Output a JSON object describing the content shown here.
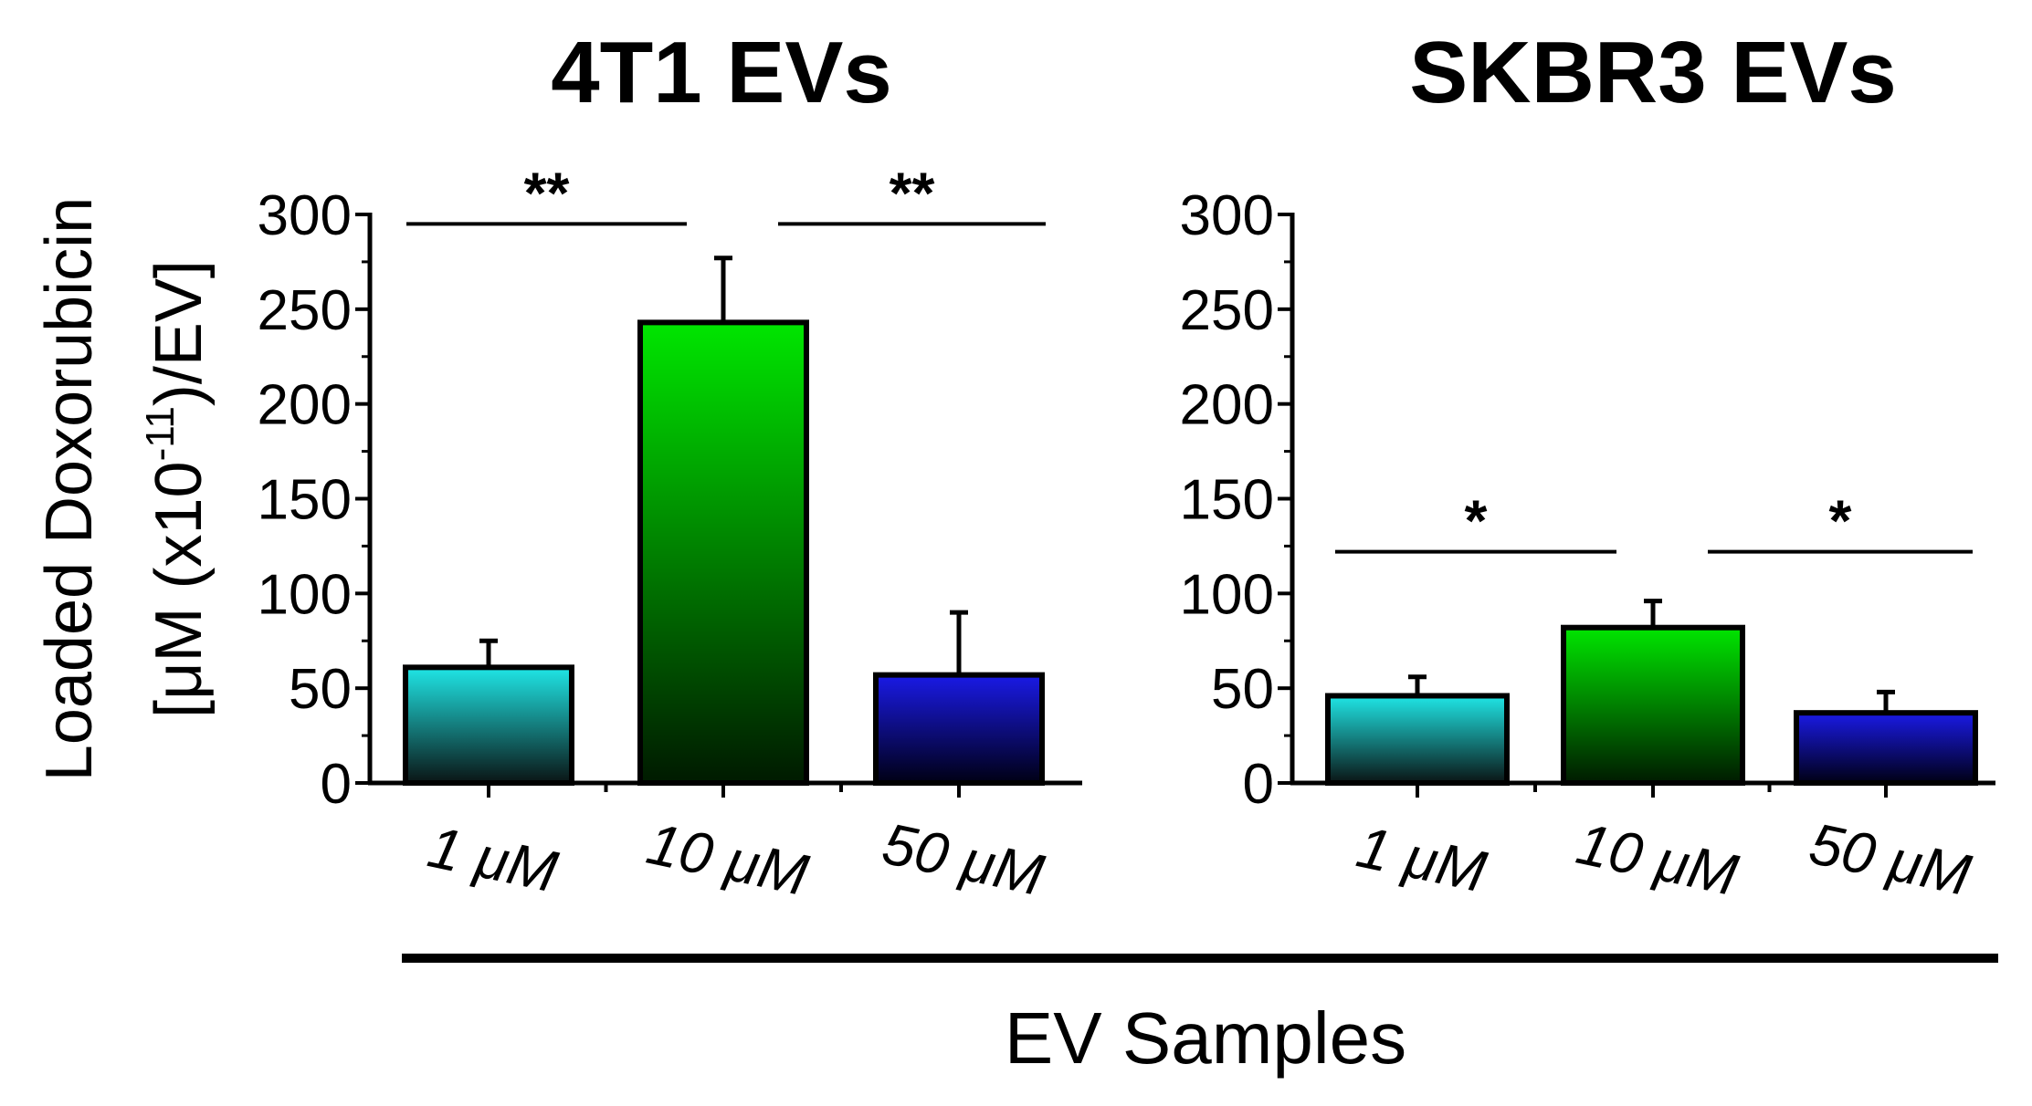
{
  "chart_data": [
    {
      "type": "bar",
      "title": "4T1 EVs",
      "categories": [
        "1 μM",
        "10 μM",
        "50 μM"
      ],
      "values": [
        61,
        243,
        57
      ],
      "errors": [
        14,
        34,
        33
      ],
      "colors": [
        "#1fe6e6",
        "#00e600",
        "#1a1ae6"
      ],
      "ylim": [
        0,
        300
      ],
      "yticks": [
        "0",
        "50",
        "100",
        "150",
        "200",
        "250",
        "300"
      ],
      "significance": [
        {
          "from": 0,
          "to": 1,
          "label": "**"
        },
        {
          "from": 1,
          "to": 2,
          "label": "**"
        }
      ]
    },
    {
      "type": "bar",
      "title": "SKBR3 EVs",
      "categories": [
        "1 μM",
        "10 μM",
        "50 μM"
      ],
      "values": [
        46,
        82,
        37
      ],
      "errors": [
        10,
        14,
        11
      ],
      "colors": [
        "#1fe6e6",
        "#00e600",
        "#1a1ae6"
      ],
      "ylim": [
        0,
        300
      ],
      "yticks": [
        "0",
        "50",
        "100",
        "150",
        "200",
        "250",
        "300"
      ],
      "significance": [
        {
          "from": 0,
          "to": 1,
          "label": "*"
        },
        {
          "from": 1,
          "to": 2,
          "label": "*"
        }
      ]
    }
  ],
  "ylabel_line1": "Loaded Doxorubicin",
  "ylabel_line2_prefix": "[μM (x10",
  "ylabel_line2_exp": "-11",
  "ylabel_line2_suffix": ")/EV]",
  "xlabel": "EV Samples"
}
